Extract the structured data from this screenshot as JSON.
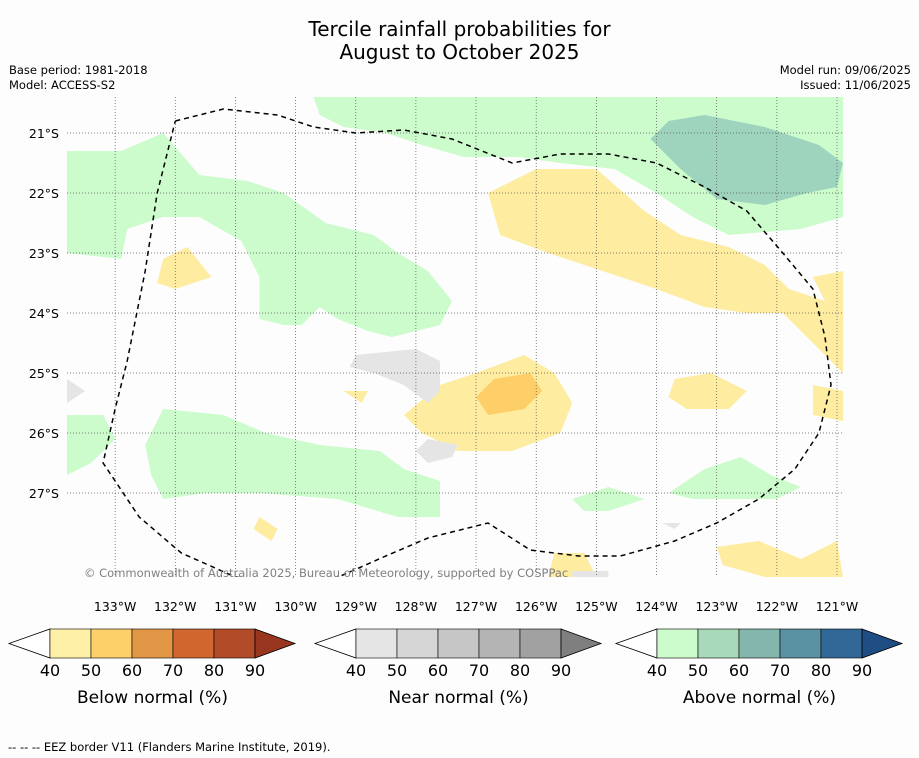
{
  "title_line1": "Tercile rainfall probabilities for",
  "title_line2": "August to October 2025",
  "base_period": "Base period: 1981-2018",
  "model": "Model: ACCESS-S2",
  "model_run": "Model run: 09/06/2025",
  "issued": "Issued: 11/06/2025",
  "copyright": "© Commonwealth of Australia 2025, Bureau of Meteorology, supported by COSPPac",
  "footer": "--  --  -- EEZ border V11 (Flanders Marine Institute, 2019).",
  "chart_data": {
    "type": "heatmap",
    "xlim": [
      -133.8,
      -120.9
    ],
    "ylim": [
      -28.4,
      -20.4
    ],
    "x_ticks": [
      -133,
      -132,
      -131,
      -130,
      -129,
      -128,
      -127,
      -126,
      -125,
      -124,
      -123,
      -122,
      -121
    ],
    "x_tick_labels": [
      "133°W",
      "132°W",
      "131°W",
      "130°W",
      "129°W",
      "128°W",
      "127°W",
      "126°W",
      "125°W",
      "124°W",
      "123°W",
      "122°W",
      "121°W"
    ],
    "y_ticks": [
      -21,
      -22,
      -23,
      -24,
      -25,
      -26,
      -27
    ],
    "y_tick_labels": [
      "21°S",
      "22°S",
      "23°S",
      "24°S",
      "25°S",
      "26°S",
      "27°S"
    ],
    "grid": true,
    "regions": [
      {
        "category": "above",
        "level": 40,
        "color": "#ccfbcc",
        "points": [
          [
            -129.7,
            -20.4
          ],
          [
            -120.9,
            -20.4
          ],
          [
            -120.9,
            -22.4
          ],
          [
            -121.6,
            -22.6
          ],
          [
            -122.8,
            -22.7
          ],
          [
            -123.4,
            -22.4
          ],
          [
            -124.0,
            -22.0
          ],
          [
            -124.7,
            -21.6
          ],
          [
            -125.6,
            -21.5
          ],
          [
            -126.3,
            -21.4
          ],
          [
            -127.2,
            -21.4
          ],
          [
            -127.9,
            -21.2
          ],
          [
            -128.5,
            -21.0
          ],
          [
            -129.2,
            -20.9
          ],
          [
            -129.6,
            -20.7
          ]
        ]
      },
      {
        "category": "above",
        "level": 50,
        "color": "#9ed3bd",
        "points": [
          [
            -123.8,
            -20.8
          ],
          [
            -123.2,
            -20.7
          ],
          [
            -122.2,
            -20.9
          ],
          [
            -121.3,
            -21.2
          ],
          [
            -120.9,
            -21.5
          ],
          [
            -121.0,
            -21.9
          ],
          [
            -121.5,
            -22.0
          ],
          [
            -122.2,
            -22.2
          ],
          [
            -123.0,
            -22.1
          ],
          [
            -123.6,
            -21.6
          ],
          [
            -124.1,
            -21.1
          ]
        ]
      },
      {
        "category": "above",
        "level": 40,
        "color": "#ccfbcc",
        "points": [
          [
            -133.8,
            -21.3
          ],
          [
            -132.9,
            -21.3
          ],
          [
            -132.2,
            -21.0
          ],
          [
            -131.6,
            -21.7
          ],
          [
            -130.8,
            -21.8
          ],
          [
            -130.2,
            -22.0
          ],
          [
            -129.5,
            -22.5
          ],
          [
            -128.7,
            -22.7
          ],
          [
            -128.3,
            -23.0
          ],
          [
            -127.8,
            -23.3
          ],
          [
            -127.4,
            -23.8
          ],
          [
            -127.6,
            -24.2
          ],
          [
            -128.4,
            -24.4
          ],
          [
            -128.8,
            -24.3
          ],
          [
            -129.3,
            -24.1
          ],
          [
            -129.6,
            -23.9
          ],
          [
            -129.9,
            -24.2
          ],
          [
            -130.2,
            -24.2
          ],
          [
            -130.6,
            -24.1
          ],
          [
            -130.6,
            -23.4
          ],
          [
            -130.9,
            -22.8
          ],
          [
            -131.6,
            -22.4
          ],
          [
            -132.2,
            -22.4
          ],
          [
            -132.8,
            -22.6
          ],
          [
            -132.9,
            -23.1
          ],
          [
            -133.8,
            -23.0
          ]
        ]
      },
      {
        "category": "above",
        "level": 40,
        "color": "#ccfbcc",
        "points": [
          [
            -132.2,
            -25.6
          ],
          [
            -131.2,
            -25.7
          ],
          [
            -130.5,
            -26.0
          ],
          [
            -129.6,
            -26.2
          ],
          [
            -128.6,
            -26.3
          ],
          [
            -128.2,
            -26.6
          ],
          [
            -127.6,
            -26.8
          ],
          [
            -127.6,
            -27.4
          ],
          [
            -128.3,
            -27.4
          ],
          [
            -129.3,
            -27.1
          ],
          [
            -130.6,
            -27.0
          ],
          [
            -131.5,
            -27.0
          ],
          [
            -132.2,
            -27.1
          ],
          [
            -132.4,
            -26.7
          ],
          [
            -132.5,
            -26.2
          ]
        ]
      },
      {
        "category": "above",
        "level": 40,
        "color": "#ccfbcc",
        "points": [
          [
            -133.8,
            -25.7
          ],
          [
            -133.2,
            -25.7
          ],
          [
            -133.0,
            -26.1
          ],
          [
            -133.4,
            -26.5
          ],
          [
            -133.8,
            -26.7
          ]
        ]
      },
      {
        "category": "above",
        "level": 40,
        "color": "#ccfbcc",
        "points": [
          [
            -125.4,
            -27.1
          ],
          [
            -124.8,
            -26.9
          ],
          [
            -124.2,
            -27.1
          ],
          [
            -124.8,
            -27.3
          ],
          [
            -125.2,
            -27.3
          ]
        ]
      },
      {
        "category": "above",
        "level": 40,
        "color": "#ccfbcc",
        "points": [
          [
            -123.8,
            -27.0
          ],
          [
            -123.2,
            -26.6
          ],
          [
            -122.6,
            -26.4
          ],
          [
            -122.1,
            -26.7
          ],
          [
            -121.6,
            -26.9
          ],
          [
            -122.0,
            -27.1
          ],
          [
            -122.8,
            -27.1
          ],
          [
            -123.4,
            -27.1
          ]
        ]
      },
      {
        "category": "below",
        "level": 40,
        "color": "#feeca0",
        "points": [
          [
            -126.8,
            -22.0
          ],
          [
            -126.0,
            -21.6
          ],
          [
            -125.0,
            -21.6
          ],
          [
            -124.2,
            -22.3
          ],
          [
            -123.6,
            -22.7
          ],
          [
            -122.8,
            -22.9
          ],
          [
            -122.2,
            -23.2
          ],
          [
            -121.8,
            -23.6
          ],
          [
            -121.2,
            -23.8
          ],
          [
            -121.4,
            -23.4
          ],
          [
            -120.9,
            -23.3
          ],
          [
            -120.9,
            -25.0
          ],
          [
            -121.3,
            -24.6
          ],
          [
            -121.9,
            -24.0
          ],
          [
            -122.5,
            -24.0
          ],
          [
            -123.2,
            -23.9
          ],
          [
            -124.0,
            -23.6
          ],
          [
            -124.9,
            -23.3
          ],
          [
            -125.8,
            -23.0
          ],
          [
            -126.6,
            -22.7
          ]
        ]
      },
      {
        "category": "below",
        "level": 40,
        "color": "#feeca0",
        "points": [
          [
            -127.0,
            -25.0
          ],
          [
            -126.2,
            -24.7
          ],
          [
            -125.7,
            -25.0
          ],
          [
            -125.4,
            -25.5
          ],
          [
            -125.6,
            -26.0
          ],
          [
            -126.4,
            -26.3
          ],
          [
            -127.3,
            -26.3
          ],
          [
            -127.9,
            -26.0
          ],
          [
            -128.2,
            -25.7
          ],
          [
            -127.6,
            -25.2
          ]
        ]
      },
      {
        "category": "below",
        "level": 50,
        "color": "#fecf69",
        "points": [
          [
            -126.7,
            -25.1
          ],
          [
            -126.1,
            -25.0
          ],
          [
            -125.9,
            -25.3
          ],
          [
            -126.2,
            -25.6
          ],
          [
            -126.8,
            -25.7
          ],
          [
            -127.0,
            -25.4
          ]
        ]
      },
      {
        "category": "below",
        "level": 40,
        "color": "#feeca0",
        "points": [
          [
            -132.2,
            -23.1
          ],
          [
            -131.8,
            -22.9
          ],
          [
            -131.4,
            -23.4
          ],
          [
            -132.0,
            -23.6
          ],
          [
            -132.3,
            -23.5
          ]
        ]
      },
      {
        "category": "below",
        "level": 40,
        "color": "#feeca0",
        "points": [
          [
            -123.7,
            -25.1
          ],
          [
            -123.1,
            -25.0
          ],
          [
            -122.5,
            -25.3
          ],
          [
            -122.8,
            -25.6
          ],
          [
            -123.5,
            -25.6
          ],
          [
            -123.8,
            -25.4
          ]
        ]
      },
      {
        "category": "below",
        "level": 40,
        "color": "#feeca0",
        "points": [
          [
            -121.4,
            -25.2
          ],
          [
            -120.9,
            -25.3
          ],
          [
            -120.9,
            -25.8
          ],
          [
            -121.4,
            -25.7
          ]
        ]
      },
      {
        "category": "below",
        "level": 40,
        "color": "#feeca0",
        "points": [
          [
            -123.0,
            -27.9
          ],
          [
            -122.3,
            -27.8
          ],
          [
            -121.6,
            -28.1
          ],
          [
            -121.0,
            -27.8
          ],
          [
            -120.9,
            -28.4
          ],
          [
            -122.2,
            -28.4
          ],
          [
            -122.9,
            -28.2
          ]
        ]
      },
      {
        "category": "below",
        "level": 40,
        "color": "#feeca0",
        "points": [
          [
            -129.2,
            -25.3
          ],
          [
            -128.8,
            -25.3
          ],
          [
            -128.9,
            -25.5
          ]
        ]
      },
      {
        "category": "below",
        "level": 40,
        "color": "#feeca0",
        "points": [
          [
            -130.6,
            -27.4
          ],
          [
            -130.3,
            -27.6
          ],
          [
            -130.4,
            -27.8
          ],
          [
            -130.7,
            -27.6
          ]
        ]
      },
      {
        "category": "below",
        "level": 40,
        "color": "#feeca0",
        "points": [
          [
            -125.7,
            -28.0
          ],
          [
            -125.2,
            -28.0
          ],
          [
            -125.0,
            -28.4
          ],
          [
            -125.8,
            -28.4
          ]
        ]
      },
      {
        "category": "near",
        "level": 40,
        "color": "#e5e5e5",
        "points": [
          [
            -129.0,
            -24.7
          ],
          [
            -128.0,
            -24.6
          ],
          [
            -127.6,
            -24.8
          ],
          [
            -127.6,
            -25.3
          ],
          [
            -127.8,
            -25.5
          ],
          [
            -128.2,
            -25.2
          ],
          [
            -128.7,
            -25.0
          ],
          [
            -129.1,
            -24.9
          ]
        ]
      },
      {
        "category": "near",
        "level": 40,
        "color": "#e5e5e5",
        "points": [
          [
            -127.8,
            -26.1
          ],
          [
            -127.3,
            -26.2
          ],
          [
            -127.4,
            -26.4
          ],
          [
            -127.8,
            -26.5
          ],
          [
            -128.0,
            -26.3
          ]
        ]
      },
      {
        "category": "near",
        "level": 40,
        "color": "#e5e5e5",
        "points": [
          [
            -133.8,
            -25.1
          ],
          [
            -133.5,
            -25.3
          ],
          [
            -133.8,
            -25.5
          ]
        ]
      },
      {
        "category": "near",
        "level": 40,
        "color": "#e5e5e5",
        "points": [
          [
            -125.4,
            -28.3
          ],
          [
            -124.8,
            -28.3
          ],
          [
            -124.8,
            -28.4
          ],
          [
            -125.4,
            -28.4
          ]
        ]
      },
      {
        "category": "near",
        "level": 40,
        "color": "#e5e5e5",
        "points": [
          [
            -123.9,
            -27.5
          ],
          [
            -123.6,
            -27.5
          ],
          [
            -123.7,
            -27.6
          ]
        ]
      }
    ],
    "eez_border": [
      [
        -132.0,
        -20.8
      ],
      [
        -131.2,
        -20.6
      ],
      [
        -130.3,
        -20.7
      ],
      [
        -129.7,
        -20.9
      ],
      [
        -129.0,
        -21.0
      ],
      [
        -128.2,
        -20.95
      ],
      [
        -127.4,
        -21.1
      ],
      [
        -126.9,
        -21.3
      ],
      [
        -126.4,
        -21.5
      ],
      [
        -125.6,
        -21.35
      ],
      [
        -124.8,
        -21.35
      ],
      [
        -124.0,
        -21.5
      ],
      [
        -123.2,
        -21.9
      ],
      [
        -122.5,
        -22.3
      ],
      [
        -121.9,
        -23.0
      ],
      [
        -121.4,
        -23.6
      ],
      [
        -121.2,
        -24.4
      ],
      [
        -121.1,
        -25.2
      ],
      [
        -121.3,
        -26.0
      ],
      [
        -121.7,
        -26.6
      ],
      [
        -122.3,
        -27.1
      ],
      [
        -123.0,
        -27.5
      ],
      [
        -123.7,
        -27.8
      ],
      [
        -124.6,
        -28.05
      ],
      [
        -125.3,
        -28.05
      ],
      [
        -126.1,
        -27.95
      ],
      [
        -126.8,
        -27.5
      ],
      [
        -127.8,
        -27.75
      ],
      [
        -128.5,
        -28.05
      ],
      [
        -129.4,
        -28.45
      ],
      [
        -130.2,
        -28.5
      ],
      [
        -131.0,
        -28.4
      ],
      [
        -131.9,
        -28.0
      ],
      [
        -132.6,
        -27.4
      ],
      [
        -133.2,
        -26.5
      ],
      [
        -133.0,
        -25.6
      ],
      [
        -132.8,
        -24.8
      ],
      [
        -132.5,
        -23.3
      ],
      [
        -132.3,
        -22.0
      ],
      [
        -132.0,
        -20.8
      ]
    ]
  },
  "legends": [
    {
      "label": "Below normal (%)",
      "ticks": [
        "40",
        "50",
        "60",
        "70",
        "80",
        "90"
      ],
      "colors": [
        "#fff0a7",
        "#fed06a",
        "#e19746",
        "#d0672f",
        "#b24b27"
      ],
      "end_color": "#98361f"
    },
    {
      "label": "Near normal (%)",
      "ticks": [
        "40",
        "50",
        "60",
        "70",
        "80",
        "90"
      ],
      "colors": [
        "#e5e5e5",
        "#d6d6d6",
        "#c6c6c6",
        "#b4b4b4",
        "#a1a1a1"
      ],
      "end_color": "#7f7f7f"
    },
    {
      "label": "Above normal (%)",
      "ticks": [
        "40",
        "50",
        "60",
        "70",
        "80",
        "90"
      ],
      "colors": [
        "#ccfbcc",
        "#a8d9b8",
        "#84b6ae",
        "#5a92a1",
        "#326898"
      ],
      "end_color": "#1f4e84"
    }
  ]
}
